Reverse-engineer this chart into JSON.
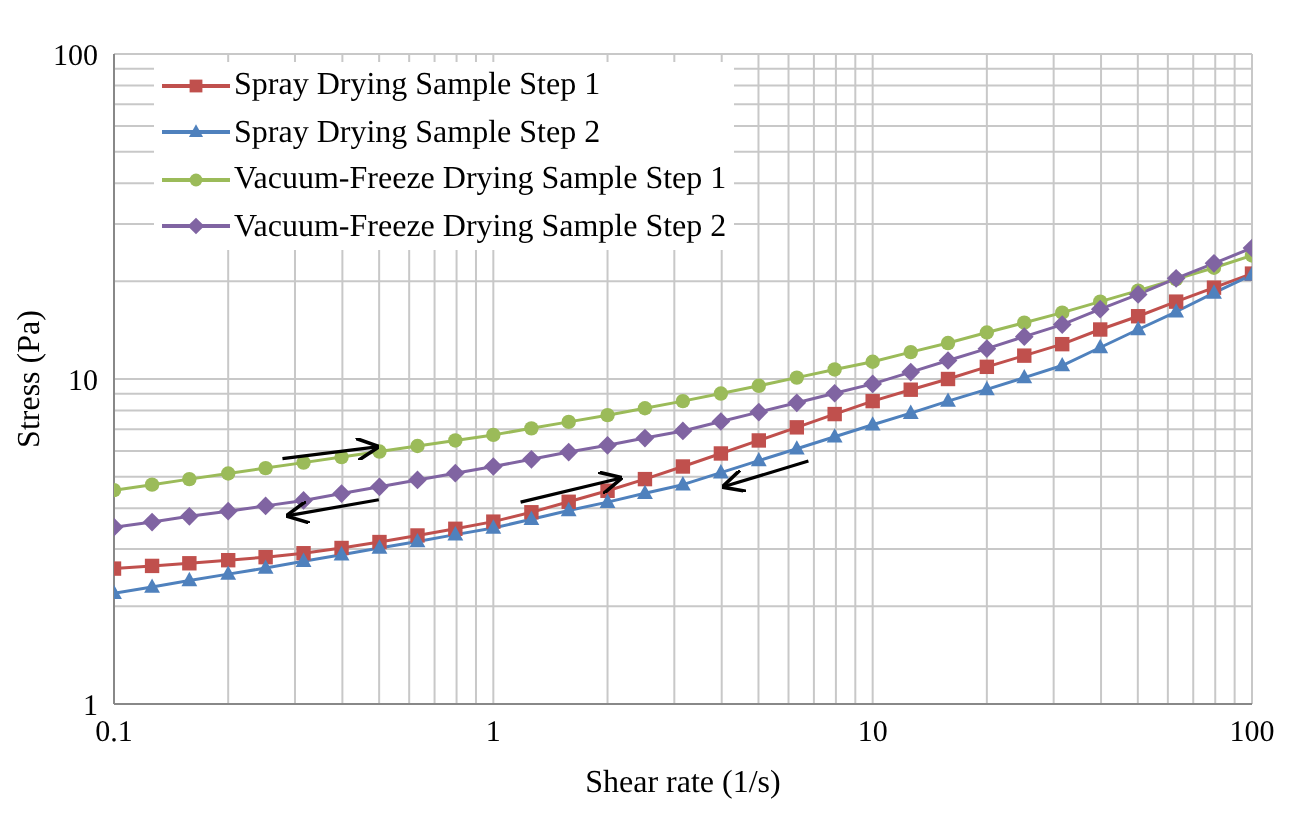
{
  "chart_data": {
    "type": "line",
    "xlabel": "Shear rate (1/s)",
    "ylabel": "Stress (Pa)",
    "log": "xy",
    "grid": true,
    "legend": "top left",
    "line_style": "solid",
    "xlim": [
      0.1,
      100
    ],
    "ylim": [
      1,
      100
    ],
    "xticks": [
      0.1,
      {
        "value": 0.2,
        "label": null
      },
      {
        "value": 0.3,
        "label": null
      },
      {
        "value": 0.4,
        "label": null
      },
      {
        "value": 0.5,
        "label": null
      },
      {
        "value": 0.6,
        "label": null
      },
      {
        "value": 0.7,
        "label": null
      },
      {
        "value": 0.8,
        "label": null
      },
      {
        "value": 0.9,
        "label": null
      },
      1,
      {
        "value": 2,
        "label": null
      },
      {
        "value": 3,
        "label": null
      },
      {
        "value": 4,
        "label": null
      },
      {
        "value": 5,
        "label": null
      },
      {
        "value": 6,
        "label": null
      },
      {
        "value": 7,
        "label": null
      },
      {
        "value": 8,
        "label": null
      },
      {
        "value": 9,
        "label": null
      },
      10,
      {
        "value": 20,
        "label": null
      },
      {
        "value": 30,
        "label": null
      },
      {
        "value": 40,
        "label": null
      },
      {
        "value": 50,
        "label": null
      },
      {
        "value": 60,
        "label": null
      },
      {
        "value": 70,
        "label": null
      },
      {
        "value": 80,
        "label": null
      },
      {
        "value": 90,
        "label": null
      },
      100
    ],
    "yticks": [
      1,
      {
        "value": 2,
        "label": null
      },
      {
        "value": 3,
        "label": null
      },
      {
        "value": 4,
        "label": null
      },
      {
        "value": 5,
        "label": null
      },
      {
        "value": 6,
        "label": null
      },
      {
        "value": 7,
        "label": null
      },
      {
        "value": 8,
        "label": null
      },
      {
        "value": 9,
        "label": null
      },
      10,
      {
        "value": 20,
        "label": null
      },
      {
        "value": 30,
        "label": null
      },
      {
        "value": 40,
        "label": null
      },
      {
        "value": 50,
        "label": null
      },
      {
        "value": 60,
        "label": null
      },
      {
        "value": 70,
        "label": null
      },
      {
        "value": 80,
        "label": null
      },
      {
        "value": 90,
        "label": null
      },
      100
    ],
    "x": [
      0.1,
      0.126,
      0.158,
      0.2,
      0.251,
      0.316,
      0.398,
      0.501,
      0.631,
      0.794,
      1,
      1.26,
      1.58,
      2,
      2.51,
      3.16,
      3.98,
      5.01,
      6.31,
      7.94,
      10,
      12.6,
      15.8,
      20,
      25.1,
      31.6,
      39.8,
      50.1,
      63.1,
      79.4,
      100
    ],
    "series": [
      {
        "name": "Spray Drying Sample Step 1",
        "color": "#c0504d",
        "marker": "square",
        "values": [
          2.61,
          2.66,
          2.71,
          2.77,
          2.83,
          2.91,
          3.02,
          3.15,
          3.3,
          3.46,
          3.64,
          3.89,
          4.19,
          4.53,
          4.92,
          5.38,
          5.9,
          6.47,
          7.1,
          7.8,
          8.55,
          9.27,
          10,
          10.9,
          11.8,
          12.8,
          14.2,
          15.6,
          17.3,
          19.1,
          21.1
        ]
      },
      {
        "name": "Spray Drying Sample Step 2",
        "color": "#4f81bd",
        "marker": "triangle",
        "values": [
          2.19,
          2.29,
          2.4,
          2.51,
          2.62,
          2.75,
          2.88,
          3.02,
          3.16,
          3.32,
          3.48,
          3.7,
          3.94,
          4.18,
          4.45,
          4.73,
          5.15,
          5.61,
          6.1,
          6.64,
          7.23,
          7.85,
          8.55,
          9.29,
          10.1,
          11,
          12.5,
          14.2,
          16.1,
          18.4,
          20.9
        ]
      },
      {
        "name": "Vacuum-Freeze Drying Sample Step 1",
        "color": "#9bbb59",
        "marker": "circle",
        "values": [
          4.55,
          4.73,
          4.92,
          5.12,
          5.32,
          5.53,
          5.75,
          5.98,
          6.22,
          6.47,
          6.73,
          7.05,
          7.38,
          7.74,
          8.13,
          8.55,
          9.02,
          9.53,
          10.1,
          10.7,
          11.3,
          12.1,
          12.9,
          13.9,
          14.9,
          16,
          17.3,
          18.7,
          20.3,
          22,
          24
        ]
      },
      {
        "name": "Vacuum-Freeze Drying Sample Step 2",
        "color": "#8064a2",
        "marker": "diamond",
        "values": [
          3.5,
          3.63,
          3.78,
          3.92,
          4.07,
          4.23,
          4.44,
          4.66,
          4.89,
          5.13,
          5.38,
          5.66,
          5.96,
          6.25,
          6.58,
          6.92,
          7.4,
          7.91,
          8.45,
          9.04,
          9.66,
          10.5,
          11.4,
          12.4,
          13.5,
          14.7,
          16.4,
          18.2,
          20.4,
          22.7,
          25.3
        ]
      }
    ]
  }
}
